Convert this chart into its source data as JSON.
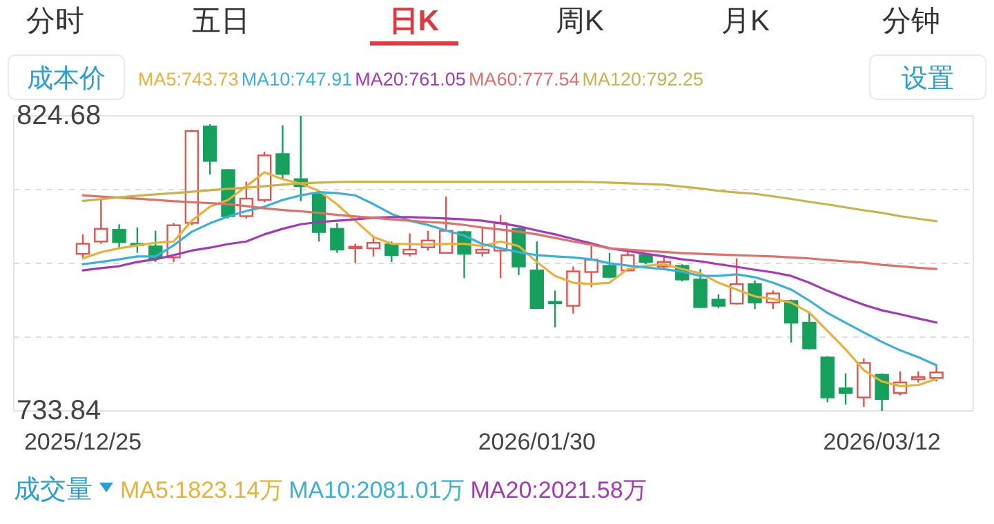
{
  "chart_data": {
    "type": "candlestick",
    "categories": [
      "2025/12/25",
      null,
      null,
      null,
      null,
      null,
      null,
      null,
      null,
      null,
      null,
      null,
      null,
      null,
      null,
      null,
      null,
      null,
      null,
      null,
      null,
      null,
      null,
      null,
      null,
      "2026/01/30",
      null,
      null,
      null,
      null,
      null,
      null,
      null,
      null,
      null,
      null,
      null,
      null,
      null,
      null,
      null,
      null,
      null,
      null,
      "2026/03/12",
      null,
      null,
      null
    ],
    "ohlc": [
      [
        782.2,
        788.2,
        780.5,
        785.3
      ],
      [
        786.0,
        798.8,
        785.3,
        789.9
      ],
      [
        789.6,
        791.3,
        784.2,
        785.8
      ],
      [
        785.3,
        790.3,
        782.5,
        785.1
      ],
      [
        784.5,
        789.3,
        779.7,
        780.8
      ],
      [
        781.1,
        791.7,
        779.7,
        791.0
      ],
      [
        791.7,
        820.4,
        791.0,
        820.0
      ],
      [
        821.4,
        822.1,
        806.6,
        810.8
      ],
      [
        808.0,
        808.3,
        793.1,
        793.8
      ],
      [
        793.8,
        804.4,
        793.1,
        799.2
      ],
      [
        798.8,
        813.6,
        798.1,
        812.5
      ],
      [
        812.9,
        821.8,
        805.2,
        806.8
      ],
      [
        805.2,
        824.68,
        798.4,
        803.0
      ],
      [
        800.5,
        800.9,
        786.0,
        788.9
      ],
      [
        789.9,
        791.7,
        782.5,
        783.5
      ],
      [
        784.0,
        785.3,
        779.3,
        784.4
      ],
      [
        783.9,
        787.8,
        781.4,
        785.6
      ],
      [
        785.1,
        786.0,
        779.7,
        781.8
      ],
      [
        782.2,
        788.5,
        781.4,
        783.5
      ],
      [
        784.2,
        789.3,
        783.2,
        786.3
      ],
      [
        782.5,
        799.8,
        782.2,
        789.3
      ],
      [
        788.9,
        789.3,
        774.7,
        782.2
      ],
      [
        782.5,
        790.3,
        781.4,
        783.5
      ],
      [
        783.2,
        794.1,
        774.7,
        791.7
      ],
      [
        789.9,
        790.3,
        775.7,
        778.3
      ],
      [
        777.1,
        786.0,
        765.2,
        765.5
      ],
      [
        767.4,
        770.9,
        759.6,
        767.2
      ],
      [
        766.2,
        778.3,
        763.8,
        776.8
      ],
      [
        776.6,
        784.6,
        771.9,
        780.4
      ],
      [
        778.5,
        782.5,
        774.7,
        775.1
      ],
      [
        777.1,
        783.2,
        776.8,
        781.8
      ],
      [
        781.8,
        782.5,
        779.0,
        779.7
      ],
      [
        778.3,
        781.8,
        777.5,
        779.7
      ],
      [
        778.5,
        779.0,
        773.7,
        774.3
      ],
      [
        774.3,
        777.5,
        765.5,
        765.8
      ],
      [
        768.1,
        769.8,
        765.5,
        766.2
      ],
      [
        766.9,
        780.8,
        766.6,
        772.9
      ],
      [
        772.9,
        774.0,
        765.2,
        767.2
      ],
      [
        767.2,
        770.9,
        765.2,
        770.0
      ],
      [
        767.7,
        768.1,
        754.9,
        761.0
      ],
      [
        761.0,
        764.4,
        752.8,
        753.1
      ],
      [
        750.3,
        750.7,
        736.5,
        738.0
      ],
      [
        740.8,
        745.4,
        735.8,
        739.4
      ],
      [
        738.0,
        750.0,
        735.1,
        748.6
      ],
      [
        745.0,
        745.4,
        733.84,
        737.5
      ],
      [
        739.4,
        746.0,
        738.6,
        742.6
      ],
      [
        743.6,
        746.0,
        742.6,
        744.3
      ],
      [
        744.0,
        747.8,
        742.9,
        745.7
      ]
    ],
    "series": [
      {
        "name": "MA5:743.73",
        "type": "line",
        "color": "#e8b23a",
        "values": [
          780.8,
          782.7,
          783.9,
          784.8,
          785.6,
          786.0,
          792.4,
          796.7,
          798.8,
          803.0,
          807.3,
          805.2,
          803.8,
          801.6,
          797.4,
          792.4,
          787.4,
          785.3,
          785.2,
          785.1,
          785.3,
          785.3,
          784.6,
          786.0,
          784.6,
          779.7,
          775.4,
          773.3,
          772.9,
          773.3,
          777.5,
          778.5,
          779.0,
          777.5,
          776.2,
          773.3,
          771.2,
          769.1,
          768.3,
          767.2,
          764.1,
          758.5,
          752.8,
          746.4,
          742.9,
          741.5,
          741.8,
          743.73
        ]
      },
      {
        "name": "MA10:747.91",
        "type": "line",
        "color": "#3ab0dc",
        "values": [
          779.0,
          779.7,
          780.5,
          781.4,
          781.4,
          784.8,
          789.0,
          791.6,
          793.7,
          795.4,
          796.7,
          798.8,
          800.2,
          801.2,
          800.9,
          800.2,
          797.5,
          794.5,
          792.4,
          791.1,
          789.4,
          787.8,
          785.2,
          783.9,
          782.7,
          781.8,
          781.4,
          781.1,
          780.5,
          779.3,
          778.6,
          778.0,
          777.5,
          776.7,
          775.4,
          775.4,
          775.9,
          775.0,
          773.3,
          771.2,
          767.8,
          764.0,
          761.0,
          758.0,
          755.1,
          752.5,
          750.4,
          747.91
        ]
      },
      {
        "name": "MA20:761.05",
        "type": "line",
        "color": "#a23bb5",
        "values": [
          777.1,
          777.8,
          778.4,
          779.7,
          780.5,
          781.8,
          783.2,
          784.1,
          785.2,
          786.0,
          788.2,
          789.9,
          791.3,
          792.0,
          792.4,
          792.8,
          793.3,
          793.5,
          793.5,
          793.3,
          793.1,
          792.8,
          792.4,
          791.6,
          790.7,
          789.4,
          788.2,
          786.8,
          785.4,
          783.9,
          783.1,
          782.2,
          781.4,
          780.5,
          779.9,
          779.0,
          778.2,
          777.3,
          776.5,
          775.4,
          773.3,
          770.8,
          768.6,
          766.5,
          764.8,
          763.6,
          762.3,
          761.05
        ]
      },
      {
        "name": "MA60:777.54",
        "type": "line",
        "color": "#e0706a",
        "values": [
          800.2,
          799.8,
          799.5,
          799.2,
          798.8,
          798.4,
          798.1,
          797.8,
          797.5,
          796.9,
          796.2,
          795.7,
          795.3,
          794.8,
          794.2,
          793.7,
          793.3,
          792.8,
          792.4,
          792.0,
          791.7,
          791.1,
          790.3,
          789.7,
          789.0,
          788.2,
          787.1,
          786.0,
          785.0,
          783.9,
          783.5,
          783.1,
          782.8,
          782.4,
          782.2,
          782.0,
          781.8,
          781.6,
          781.4,
          781.1,
          780.8,
          780.3,
          779.9,
          779.5,
          778.8,
          778.4,
          777.9,
          777.54
        ]
      },
      {
        "name": "MA120:792.25",
        "type": "line",
        "color": "#c9b24a",
        "values": [
          798.5,
          799.0,
          799.6,
          800.1,
          800.5,
          800.9,
          801.3,
          801.8,
          802.2,
          802.6,
          803.0,
          803.5,
          803.9,
          804.1,
          804.3,
          804.4,
          804.4,
          804.4,
          804.4,
          804.4,
          804.4,
          804.4,
          804.4,
          804.4,
          804.4,
          804.4,
          804.4,
          804.4,
          804.3,
          804.1,
          803.9,
          803.7,
          803.5,
          802.9,
          802.3,
          801.6,
          801.1,
          800.7,
          799.9,
          799.1,
          798.2,
          797.4,
          796.5,
          795.6,
          794.8,
          793.8,
          793.0,
          792.25
        ]
      }
    ],
    "ylim": [
      733.84,
      824.68
    ],
    "yticks": [
      824.68,
      {
        "value": 801.97,
        "label": null
      },
      {
        "value": 779.26,
        "label": null
      },
      {
        "value": 756.55,
        "label": null
      },
      733.84
    ],
    "grid": "y",
    "legend": "top",
    "annotations": [
      "分时",
      "五日",
      "日K",
      "周K",
      "月K",
      "分钟",
      "成本价",
      "设置",
      "成交量",
      "MA5:1823.14万",
      "MA10:2081.01万",
      "MA20:2021.58万"
    ]
  }
}
